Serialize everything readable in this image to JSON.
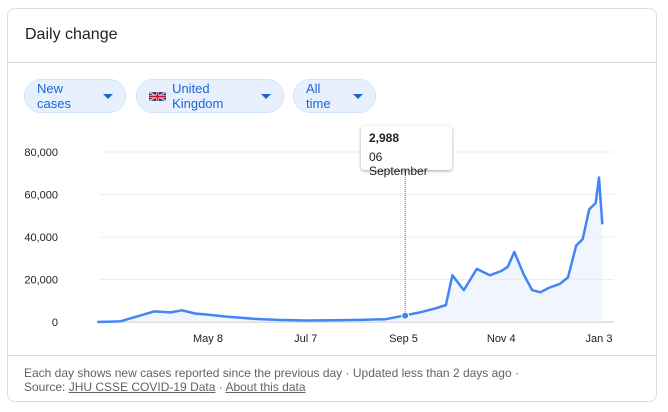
{
  "card": {
    "title": "Daily change"
  },
  "filters": {
    "metric": "New cases",
    "region": "United Kingdom",
    "range": "All time"
  },
  "tooltip": {
    "value": "2,988",
    "date": "06 September"
  },
  "footer": {
    "description": "Each day shows new cases reported since the previous day",
    "separator1": "·",
    "updated": "Updated less than 2 days ago",
    "separator2": "·",
    "source_label": "Source:",
    "source_link": "JHU CSSE COVID-19 Data",
    "separator3": "·",
    "about_link": "About this data"
  },
  "colors": {
    "line": "#4285f4",
    "area": "#e8f0fe",
    "chip_text": "#1967d2"
  },
  "chart_data": {
    "type": "line",
    "series": [
      {
        "x": [
          "2020-03-01",
          "2020-03-15",
          "2020-03-25",
          "2020-04-05",
          "2020-04-15",
          "2020-04-22",
          "2020-04-30",
          "2020-05-08",
          "2020-05-20",
          "2020-06-05",
          "2020-06-20",
          "2020-07-07",
          "2020-07-25",
          "2020-08-10",
          "2020-08-25",
          "2020-09-05",
          "2020-09-15",
          "2020-09-25",
          "2020-10-01",
          "2020-10-05",
          "2020-10-12",
          "2020-10-20",
          "2020-10-28",
          "2020-11-04",
          "2020-11-08",
          "2020-11-12",
          "2020-11-18",
          "2020-11-23",
          "2020-11-28",
          "2020-12-03",
          "2020-12-10",
          "2020-12-15",
          "2020-12-20",
          "2020-12-24",
          "2020-12-28",
          "2021-01-01",
          "2021-01-03",
          "2021-01-05"
        ],
        "y": [
          0,
          300,
          2500,
          5000,
          4500,
          5500,
          4000,
          3500,
          2500,
          1500,
          1000,
          700,
          800,
          1000,
          1300,
          2988,
          4500,
          6500,
          8000,
          22000,
          15000,
          25000,
          22000,
          24000,
          26000,
          33000,
          22000,
          15000,
          14000,
          16000,
          18000,
          21000,
          36000,
          39000,
          53000,
          56000,
          68000,
          46000
        ]
      }
    ],
    "x_ticks": [
      "May 8",
      "Jul 7",
      "Sep 5",
      "Nov 4",
      "Jan 3"
    ],
    "y_ticks": [
      "0",
      "20,000",
      "40,000",
      "60,000",
      "80,000"
    ],
    "ylim": [
      0,
      80000
    ],
    "highlight": {
      "x": "2020-09-06",
      "y": 2988
    },
    "grid": true
  }
}
